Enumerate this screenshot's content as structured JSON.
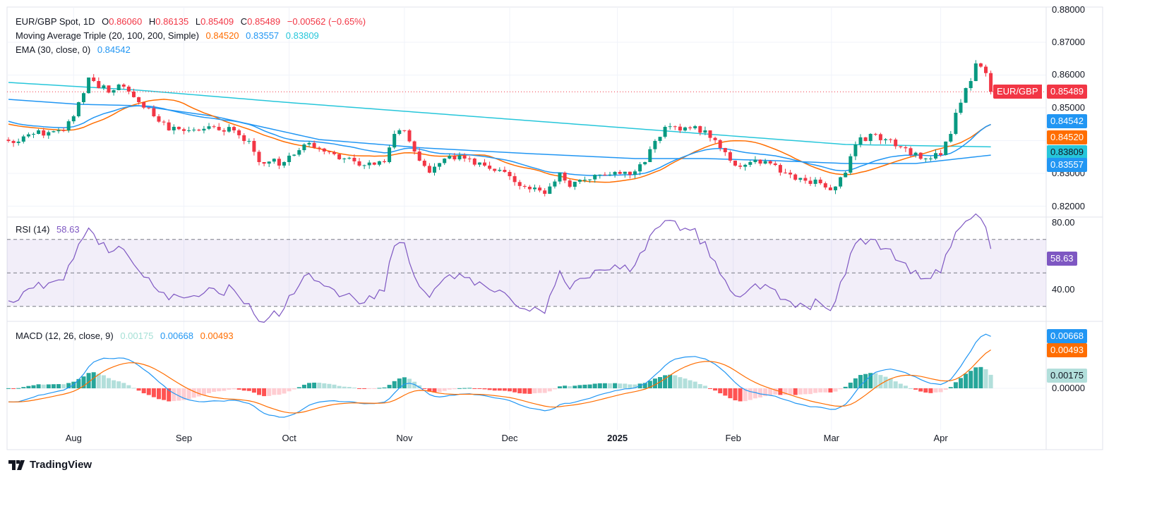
{
  "header": {
    "symbol": "EUR/GBP Spot, 1D",
    "o_label": "O",
    "o": "0.86060",
    "h_label": "H",
    "h": "0.86135",
    "l_label": "L",
    "l": "0.85409",
    "c_label": "C",
    "c": "0.85489",
    "change": "−0.00562 (−0.65%)"
  },
  "ma_legend": {
    "title": "Moving Average Triple (20, 100, 200, Simple)",
    "v20": "0.84520",
    "v100": "0.83557",
    "v200": "0.83809"
  },
  "ema_legend": {
    "title": "EMA (30, close, 0)",
    "value": "0.84542"
  },
  "rsi_legend": {
    "title": "RSI (14)",
    "value": "58.63"
  },
  "macd_legend": {
    "title": "MACD (12, 26, close, 9)",
    "hist": "0.00175",
    "macd": "0.00668",
    "signal": "0.00493"
  },
  "price_axis": [
    "0.88000",
    "0.87000",
    "0.86000",
    "0.85000",
    "0.83000",
    "0.82000"
  ],
  "rsi_axis": [
    "80.00",
    "40.00"
  ],
  "macd_axis": [
    "0.00000"
  ],
  "tags": {
    "symbol": "EUR/GBP",
    "last": "0.85489",
    "ema": "0.84542",
    "sma20": "0.84520",
    "sma200": "0.83809",
    "sma100": "0.83557",
    "rsi": "58.63",
    "macd": "0.00668",
    "signal": "0.00493",
    "hist": "0.00175"
  },
  "logo": "TradingView",
  "colors": {
    "up": "#089981",
    "down": "#f23645",
    "sma20": "#ff6d00",
    "sma100": "#2196f3",
    "sma200": "#26c6da",
    "ema": "#2196f3",
    "rsi": "#7e57c2",
    "macd": "#2196f3",
    "signal": "#ff6d00"
  },
  "chart_data": {
    "type": "candlestick",
    "title": "EUR/GBP Spot, 1D",
    "bars": 197,
    "close_keypoints": [
      [
        0,
        0.83989
      ],
      [
        5,
        0.84204
      ],
      [
        11,
        0.84312
      ],
      [
        13,
        0.84742
      ],
      [
        14,
        0.85172
      ],
      [
        16,
        0.85925
      ],
      [
        18,
        0.85602
      ],
      [
        21,
        0.85538
      ],
      [
        22,
        0.8571
      ],
      [
        24,
        0.85495
      ],
      [
        26,
        0.85172
      ],
      [
        29,
        0.84742
      ],
      [
        32,
        0.84312
      ],
      [
        36,
        0.84312
      ],
      [
        41,
        0.84419
      ],
      [
        45,
        0.84312
      ],
      [
        48,
        0.83989
      ],
      [
        50,
        0.83344
      ],
      [
        55,
        0.83344
      ],
      [
        59,
        0.83882
      ],
      [
        63,
        0.83667
      ],
      [
        67,
        0.83452
      ],
      [
        70,
        0.83237
      ],
      [
        75,
        0.83344
      ],
      [
        77,
        0.84204
      ],
      [
        79,
        0.84312
      ],
      [
        81,
        0.83667
      ],
      [
        84,
        0.83022
      ],
      [
        87,
        0.83452
      ],
      [
        91,
        0.83452
      ],
      [
        95,
        0.83237
      ],
      [
        100,
        0.82914
      ],
      [
        103,
        0.82591
      ],
      [
        107,
        0.82376
      ],
      [
        110,
        0.83022
      ],
      [
        112,
        0.82591
      ],
      [
        115,
        0.82806
      ],
      [
        119,
        0.82957
      ],
      [
        124,
        0.82957
      ],
      [
        127,
        0.83344
      ],
      [
        129,
        0.83989
      ],
      [
        131,
        0.84419
      ],
      [
        136,
        0.84376
      ],
      [
        139,
        0.84312
      ],
      [
        142,
        0.83774
      ],
      [
        145,
        0.83237
      ],
      [
        148,
        0.83344
      ],
      [
        152,
        0.83301
      ],
      [
        155,
        0.83022
      ],
      [
        157,
        0.82806
      ],
      [
        162,
        0.82699
      ],
      [
        164,
        0.82484
      ],
      [
        167,
        0.83022
      ],
      [
        169,
        0.83882
      ],
      [
        172,
        0.84204
      ],
      [
        176,
        0.84032
      ],
      [
        180,
        0.83559
      ],
      [
        183,
        0.83452
      ],
      [
        186,
        0.83559
      ],
      [
        188,
        0.84204
      ],
      [
        189,
        0.84849
      ],
      [
        191,
        0.85602
      ],
      [
        192,
        0.85817
      ],
      [
        193,
        0.86355
      ],
      [
        195,
        0.8606
      ],
      [
        196,
        0.85489
      ]
    ],
    "last_bar": {
      "open": 0.8606,
      "high": 0.86135,
      "low": 0.85409,
      "close": 0.85489
    },
    "sma100_keypoints": [
      [
        0,
        0.85258
      ],
      [
        14,
        0.85108
      ],
      [
        26,
        0.85065
      ],
      [
        41,
        0.84742
      ],
      [
        62,
        0.84032
      ],
      [
        83,
        0.83774
      ],
      [
        104,
        0.83602
      ],
      [
        125,
        0.83452
      ],
      [
        139,
        0.83452
      ],
      [
        153,
        0.83387
      ],
      [
        167,
        0.83301
      ],
      [
        181,
        0.83301
      ],
      [
        196,
        0.83557
      ]
    ],
    "sma200_keypoints": [
      [
        0,
        0.85774
      ],
      [
        26,
        0.85538
      ],
      [
        55,
        0.85172
      ],
      [
        83,
        0.84849
      ],
      [
        111,
        0.84527
      ],
      [
        139,
        0.84204
      ],
      [
        167,
        0.83882
      ],
      [
        196,
        0.83809
      ]
    ],
    "x_ticks": [
      {
        "label": "Aug",
        "bar": 13
      },
      {
        "label": "Sep",
        "bar": 35
      },
      {
        "label": "Oct",
        "bar": 56
      },
      {
        "label": "Nov",
        "bar": 79
      },
      {
        "label": "Dec",
        "bar": 100
      },
      {
        "label": "2025",
        "bar": 121.5
      },
      {
        "label": "Feb",
        "bar": 144.6
      },
      {
        "label": "Mar",
        "bar": 164.2
      },
      {
        "label": "Apr",
        "bar": 186
      }
    ],
    "price_range": [
      0.82,
      0.88
    ],
    "rsi_levels": [
      70,
      50,
      30
    ],
    "rsi_range": [
      20,
      80
    ]
  }
}
